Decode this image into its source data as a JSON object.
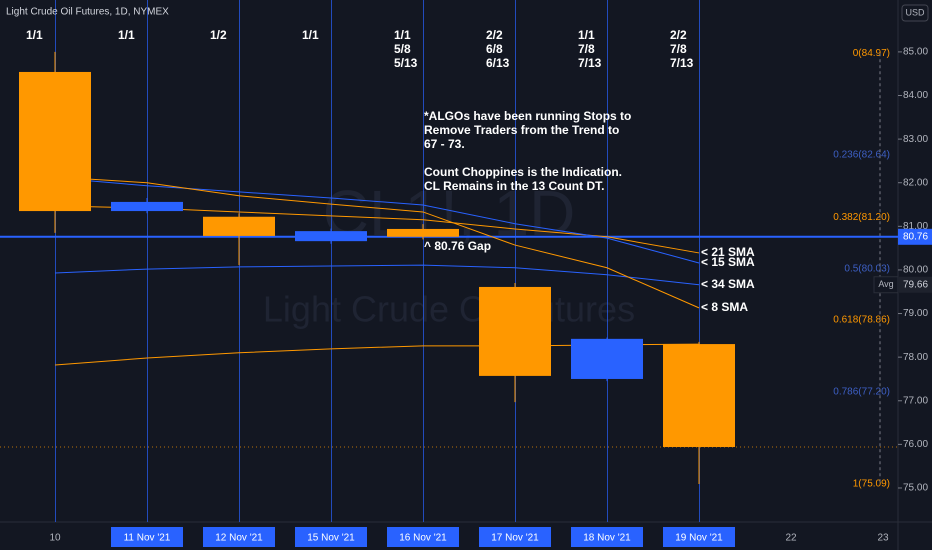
{
  "chart_data": {
    "type": "candlestick",
    "title": "Light Crude Oil Futures, 1D, NYMEX",
    "currency": "USD",
    "watermark": [
      "CL1!, 1D",
      "Light Crude Oil Futures"
    ],
    "categories": [
      "10",
      "11 Nov '21",
      "12 Nov '21",
      "15 Nov '21",
      "16 Nov '21",
      "17 Nov '21",
      "18 Nov '21",
      "19 Nov '21",
      "22",
      "23"
    ],
    "highlighted": [
      false,
      true,
      true,
      true,
      true,
      true,
      true,
      true,
      false,
      false
    ],
    "open": [
      84.54,
      81.35,
      81.22,
      80.66,
      80.94,
      79.61,
      77.5,
      78.3,
      null,
      null
    ],
    "high": [
      85.0,
      81.65,
      81.3,
      80.95,
      81.05,
      79.7,
      78.45,
      78.35,
      null,
      null
    ],
    "low": [
      80.85,
      81.3,
      80.11,
      80.6,
      80.7,
      76.97,
      77.45,
      75.09,
      null,
      null
    ],
    "close": [
      81.35,
      81.56,
      80.78,
      80.89,
      80.76,
      77.57,
      78.42,
      75.94,
      null,
      null
    ],
    "up_color": "#2962ff",
    "down_color": "#ff9800",
    "lines": [
      {
        "name": "< 21 SMA",
        "color": "#ff9800",
        "values": [
          81.47,
          81.42,
          81.33,
          81.24,
          81.15,
          80.94,
          80.76,
          80.39,
          null,
          null
        ]
      },
      {
        "name": "< 15 SMA",
        "color": "#2962ff",
        "values": [
          82.11,
          81.93,
          81.79,
          81.65,
          81.49,
          81.06,
          80.73,
          80.16,
          null,
          null
        ]
      },
      {
        "name": "< 34 SMA",
        "color": "#2962ff",
        "values": [
          79.93,
          80.02,
          80.07,
          80.09,
          80.11,
          80.05,
          79.89,
          79.66,
          null,
          null
        ]
      },
      {
        "name": "< 8 SMA",
        "color": "#ff9800",
        "values": [
          82.13,
          82.0,
          81.7,
          81.51,
          81.33,
          80.57,
          80.05,
          79.13,
          null,
          null
        ]
      },
      {
        "color": "#ff9800",
        "values": [
          77.82,
          77.98,
          78.1,
          78.19,
          78.26,
          78.26,
          78.28,
          78.3,
          null,
          null
        ]
      }
    ],
    "counts": [
      [
        "1/1"
      ],
      [
        "1/1"
      ],
      [
        "1/2"
      ],
      [
        "1/1"
      ],
      [
        "1/1",
        "5/8",
        "5/13"
      ],
      [
        "2/2",
        "6/8",
        "6/13"
      ],
      [
        "1/1",
        "7/8",
        "7/13"
      ],
      [
        "2/2",
        "7/8",
        "7/13"
      ],
      null,
      null
    ],
    "ylim": [
      74.22,
      86.19
    ],
    "yticks": [
      {
        "value": 75,
        "label": "75.00"
      },
      {
        "value": 76,
        "label": "76.00"
      },
      {
        "value": 77,
        "label": "77.00"
      },
      {
        "value": 78,
        "label": "78.00"
      },
      {
        "value": 79,
        "label": "79.00"
      },
      {
        "value": 80,
        "label": "80.00"
      },
      {
        "value": 81,
        "label": "81.00"
      },
      {
        "value": 82,
        "label": "82.00"
      },
      {
        "value": 83,
        "label": "83.00"
      },
      {
        "value": 84,
        "label": "84.00"
      },
      {
        "value": 85,
        "label": "85.00"
      }
    ],
    "fib_levels": [
      {
        "value": 84.97,
        "label": "0(84.97)",
        "color": "#ff9800"
      },
      {
        "value": 82.64,
        "label": "0.236(82.64)",
        "color": "#3d5fc4"
      },
      {
        "value": 81.2,
        "label": "0.382(81.20)",
        "color": "#ff9800"
      },
      {
        "value": 80.03,
        "label": "0.5(80.03)",
        "color": "#3d5fc4"
      },
      {
        "value": 78.86,
        "label": "0.618(78.86)",
        "color": "#ff9800"
      },
      {
        "value": 77.2,
        "label": "0.786(77.20)",
        "color": "#3d5fc4"
      },
      {
        "value": 75.09,
        "label": "1(75.09)",
        "color": "#ff9800"
      }
    ],
    "price_line": {
      "value": 80.76,
      "label": "80.76",
      "color": "#2962ff"
    },
    "avg_line": {
      "value": 79.66,
      "label": "79.66",
      "tag": "Avg"
    },
    "gap_note": {
      "value": 80.76,
      "label": "^ 80.76 Gap"
    },
    "notes": [
      [
        "*ALGOs have been running Stops to",
        "Remove Traders from the Trend to",
        "67 - 73."
      ],
      [
        "Count Choppines is the Indication.",
        "CL Remains in the 13 Count DT."
      ]
    ]
  }
}
